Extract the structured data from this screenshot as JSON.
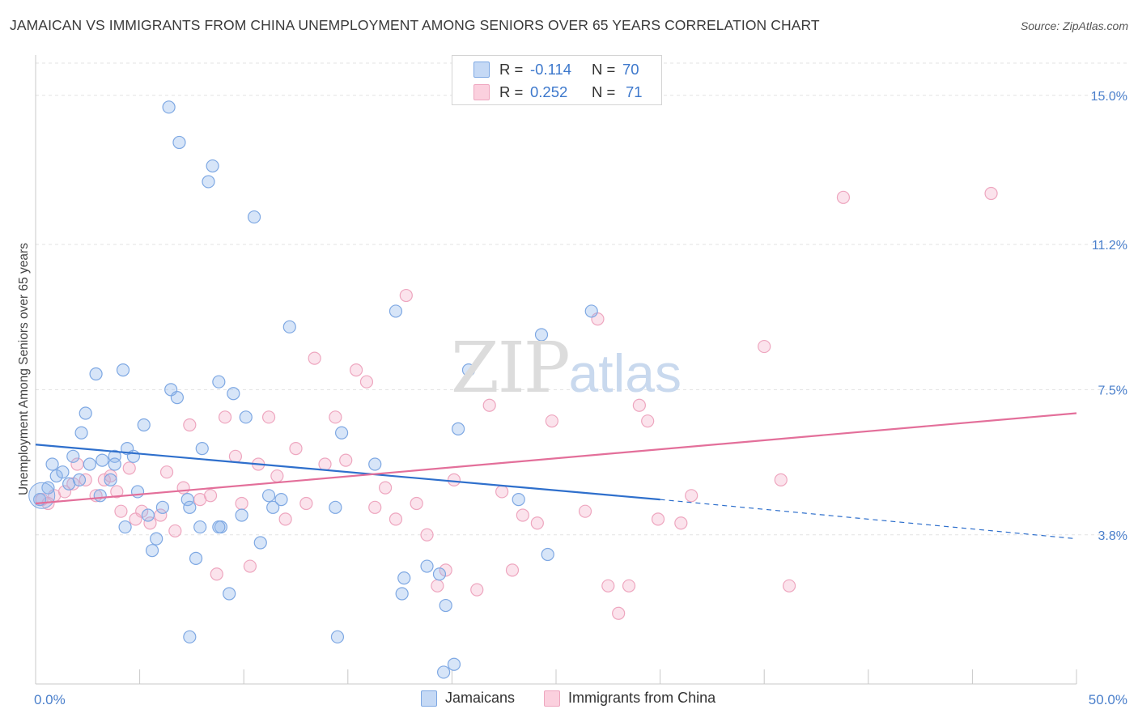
{
  "title": "JAMAICAN VS IMMIGRANTS FROM CHINA UNEMPLOYMENT AMONG SENIORS OVER 65 YEARS CORRELATION CHART",
  "source": "Source: ZipAtlas.com",
  "watermark": {
    "zip": "ZIP",
    "atlas": "atlas"
  },
  "colors": {
    "jamaicans": "#6fa0e0",
    "china": "#f0a0bb",
    "blue_line": "#2e6fcc",
    "pink_line": "#e36f9a",
    "tick_text": "#4a7fcb"
  },
  "legend_top": {
    "rows": [
      {
        "r_label": "R =",
        "r_value": "-0.114",
        "n_label": "N =",
        "n_value": "70"
      },
      {
        "r_label": "R =",
        "r_value": "0.252",
        "n_label": "N =",
        "n_value": "71"
      }
    ]
  },
  "legend_bottom": {
    "series1": "Jamaicans",
    "series2": "Immigrants from China"
  },
  "chart_data": {
    "type": "scatter",
    "title": "JAMAICAN VS IMMIGRANTS FROM CHINA UNEMPLOYMENT AMONG SENIORS OVER 65 YEARS CORRELATION CHART",
    "xlabel": "",
    "ylabel": "Unemployment Among Seniors over 65 years",
    "xlim": [
      0,
      50
    ],
    "ylim": [
      0,
      16
    ],
    "y_ticks": [
      3.8,
      7.5,
      11.2,
      15.0
    ],
    "y_tick_labels": [
      "3.8%",
      "7.5%",
      "11.2%",
      "15.0%"
    ],
    "x_tick_labels": [
      "0.0%",
      "50.0%"
    ],
    "grid": "horizontal dashed",
    "legend_placement": "bottom",
    "series": [
      {
        "name": "Jamaicans",
        "color": "#6fa0e0",
        "trend": {
          "x": [
            0,
            30
          ],
          "y": [
            6.1,
            4.7
          ],
          "dashed_to": [
            50,
            3.7
          ]
        },
        "points": [
          [
            0.2,
            4.7
          ],
          [
            0.6,
            5.0
          ],
          [
            0.8,
            5.6
          ],
          [
            1.0,
            5.3
          ],
          [
            1.3,
            5.4
          ],
          [
            1.6,
            5.1
          ],
          [
            1.8,
            5.8
          ],
          [
            2.1,
            5.2
          ],
          [
            2.2,
            6.4
          ],
          [
            2.4,
            6.9
          ],
          [
            2.6,
            5.6
          ],
          [
            2.9,
            7.9
          ],
          [
            3.1,
            4.8
          ],
          [
            3.6,
            5.2
          ],
          [
            3.8,
            5.8
          ],
          [
            3.8,
            5.6
          ],
          [
            4.2,
            8.0
          ],
          [
            4.3,
            4.0
          ],
          [
            4.4,
            6.0
          ],
          [
            4.7,
            5.8
          ],
          [
            4.9,
            4.9
          ],
          [
            5.2,
            6.6
          ],
          [
            5.4,
            4.3
          ],
          [
            5.6,
            3.4
          ],
          [
            5.8,
            3.7
          ],
          [
            6.1,
            4.5
          ],
          [
            6.4,
            14.7
          ],
          [
            6.5,
            7.5
          ],
          [
            6.8,
            7.3
          ],
          [
            6.9,
            13.8
          ],
          [
            7.3,
            4.7
          ],
          [
            7.4,
            4.5
          ],
          [
            7.7,
            3.2
          ],
          [
            7.9,
            4.0
          ],
          [
            8.0,
            6.0
          ],
          [
            8.3,
            12.8
          ],
          [
            8.5,
            13.2
          ],
          [
            8.8,
            7.7
          ],
          [
            8.9,
            4.0
          ],
          [
            9.3,
            2.3
          ],
          [
            9.5,
            7.4
          ],
          [
            9.9,
            4.3
          ],
          [
            10.1,
            6.8
          ],
          [
            10.5,
            11.9
          ],
          [
            10.8,
            3.6
          ],
          [
            11.2,
            4.8
          ],
          [
            11.4,
            4.5
          ],
          [
            11.8,
            4.7
          ],
          [
            12.2,
            9.1
          ],
          [
            14.4,
            4.5
          ],
          [
            14.5,
            1.2
          ],
          [
            14.7,
            6.4
          ],
          [
            16.3,
            5.6
          ],
          [
            17.3,
            9.5
          ],
          [
            17.6,
            2.3
          ],
          [
            17.7,
            2.7
          ],
          [
            18.8,
            3.0
          ],
          [
            19.4,
            2.8
          ],
          [
            19.7,
            2.0
          ],
          [
            20.1,
            0.5
          ],
          [
            20.3,
            6.5
          ],
          [
            20.8,
            8.0
          ],
          [
            23.2,
            4.7
          ],
          [
            24.3,
            8.9
          ],
          [
            24.6,
            3.3
          ],
          [
            26.7,
            9.5
          ],
          [
            7.4,
            1.2
          ],
          [
            8.8,
            4.0
          ],
          [
            19.6,
            0.3
          ],
          [
            3.2,
            5.7
          ]
        ]
      },
      {
        "name": "Immigrants from China",
        "color": "#f0a0bb",
        "trend": {
          "x": [
            0,
            50
          ],
          "y": [
            4.6,
            6.9
          ]
        },
        "points": [
          [
            0.3,
            4.7
          ],
          [
            0.9,
            4.8
          ],
          [
            1.4,
            4.9
          ],
          [
            1.8,
            5.1
          ],
          [
            2.4,
            5.2
          ],
          [
            2.9,
            4.8
          ],
          [
            3.3,
            5.2
          ],
          [
            3.6,
            5.3
          ],
          [
            3.9,
            4.9
          ],
          [
            4.1,
            4.4
          ],
          [
            4.5,
            5.5
          ],
          [
            4.8,
            4.2
          ],
          [
            5.1,
            4.4
          ],
          [
            5.5,
            4.1
          ],
          [
            6.0,
            4.3
          ],
          [
            6.3,
            5.4
          ],
          [
            6.7,
            3.9
          ],
          [
            7.1,
            5.0
          ],
          [
            7.4,
            6.6
          ],
          [
            7.9,
            4.7
          ],
          [
            8.4,
            4.8
          ],
          [
            8.7,
            2.8
          ],
          [
            9.1,
            6.8
          ],
          [
            9.6,
            5.8
          ],
          [
            9.9,
            4.6
          ],
          [
            10.3,
            3.0
          ],
          [
            10.7,
            5.6
          ],
          [
            11.2,
            6.8
          ],
          [
            11.6,
            5.3
          ],
          [
            12.0,
            4.2
          ],
          [
            12.5,
            6.0
          ],
          [
            13.0,
            4.6
          ],
          [
            13.4,
            8.3
          ],
          [
            13.9,
            5.6
          ],
          [
            14.4,
            6.8
          ],
          [
            14.9,
            5.7
          ],
          [
            15.4,
            8.0
          ],
          [
            15.9,
            7.7
          ],
          [
            16.3,
            4.5
          ],
          [
            16.8,
            5.0
          ],
          [
            17.3,
            4.2
          ],
          [
            17.8,
            9.9
          ],
          [
            18.3,
            4.6
          ],
          [
            18.8,
            3.8
          ],
          [
            19.3,
            2.5
          ],
          [
            19.7,
            2.9
          ],
          [
            20.1,
            5.2
          ],
          [
            21.2,
            2.4
          ],
          [
            21.8,
            7.1
          ],
          [
            22.4,
            4.9
          ],
          [
            22.9,
            2.9
          ],
          [
            23.4,
            4.3
          ],
          [
            24.1,
            4.1
          ],
          [
            24.8,
            6.7
          ],
          [
            26.4,
            4.4
          ],
          [
            27.0,
            9.3
          ],
          [
            27.5,
            2.5
          ],
          [
            28.0,
            1.8
          ],
          [
            28.5,
            2.5
          ],
          [
            29.0,
            7.1
          ],
          [
            29.4,
            6.7
          ],
          [
            29.9,
            4.2
          ],
          [
            31.0,
            4.1
          ],
          [
            31.5,
            4.8
          ],
          [
            35.0,
            8.6
          ],
          [
            35.8,
            5.2
          ],
          [
            36.2,
            2.5
          ],
          [
            38.8,
            12.4
          ],
          [
            45.9,
            12.5
          ],
          [
            2.0,
            5.6
          ],
          [
            0.6,
            4.6
          ]
        ]
      }
    ]
  }
}
